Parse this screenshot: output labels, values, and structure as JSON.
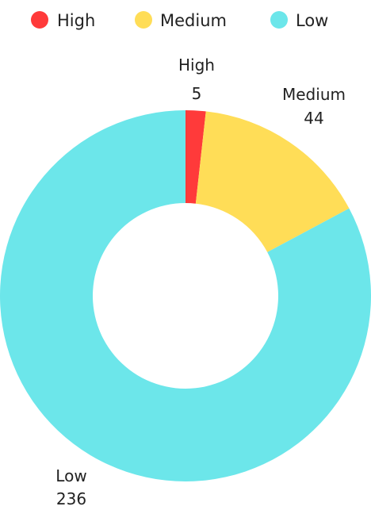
{
  "chart_data": {
    "type": "pie",
    "donut": true,
    "title": "",
    "legend_position": "top",
    "categories": [
      "High",
      "Medium",
      "Low"
    ],
    "values": [
      5,
      44,
      236
    ],
    "colors": [
      "#ff3a3a",
      "#ffdd57",
      "#6ce6ea"
    ],
    "data_labels": [
      {
        "name": "High",
        "value": "5"
      },
      {
        "name": "Medium",
        "value": "44"
      },
      {
        "name": "Low",
        "value": "236"
      }
    ]
  }
}
